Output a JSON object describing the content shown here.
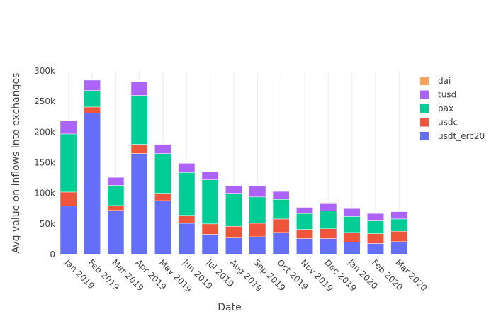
{
  "chart_data": {
    "type": "bar",
    "stacked": true,
    "title": "",
    "xlabel": "Date",
    "ylabel": "Avg value on inflows into exchanges",
    "ylim": [
      0,
      300000
    ],
    "yticks": [
      0,
      50000,
      100000,
      150000,
      200000,
      250000,
      300000
    ],
    "ytick_labels": [
      "0",
      "50k",
      "100k",
      "150k",
      "200k",
      "250k",
      "300k"
    ],
    "categories": [
      "Jan 2019",
      "Feb 2019",
      "Mar 2019",
      "Apr 2019",
      "May 2019",
      "Jun 2019",
      "Jul 2019",
      "Aug 2019",
      "Sep 2019",
      "Oct 2019",
      "Nov 2019",
      "Dec 2019",
      "Jan 2020",
      "Feb 2020",
      "Mar 2020"
    ],
    "series": [
      {
        "name": "usdt_erc20",
        "color": "#636efa",
        "values": [
          79000,
          231000,
          72000,
          165000,
          88000,
          51000,
          33000,
          27000,
          29000,
          36000,
          26000,
          26000,
          20000,
          18000,
          21000
        ]
      },
      {
        "name": "usdc",
        "color": "#ef553b",
        "values": [
          23000,
          10000,
          8000,
          15000,
          12000,
          13000,
          17000,
          19000,
          22000,
          22000,
          15000,
          16000,
          16000,
          16000,
          17000
        ]
      },
      {
        "name": "pax",
        "color": "#00cc96",
        "values": [
          95000,
          27000,
          33000,
          80000,
          65000,
          70000,
          72000,
          54000,
          43000,
          32000,
          26000,
          29000,
          26000,
          21000,
          20000
        ]
      },
      {
        "name": "tusd",
        "color": "#ab63fa",
        "values": [
          22000,
          17000,
          13000,
          22000,
          15000,
          15000,
          13000,
          12000,
          18000,
          13000,
          10000,
          12000,
          13000,
          12000,
          12000
        ]
      },
      {
        "name": "dai",
        "color": "#ffa15a",
        "values": [
          0,
          0,
          0,
          0,
          0,
          0,
          0,
          0,
          0,
          0,
          0,
          2000,
          0,
          0,
          0
        ]
      }
    ],
    "legend_order": [
      "dai",
      "tusd",
      "pax",
      "usdc",
      "usdt_erc20"
    ],
    "legend_position": "right",
    "grid": {
      "x": true,
      "y": false
    }
  }
}
